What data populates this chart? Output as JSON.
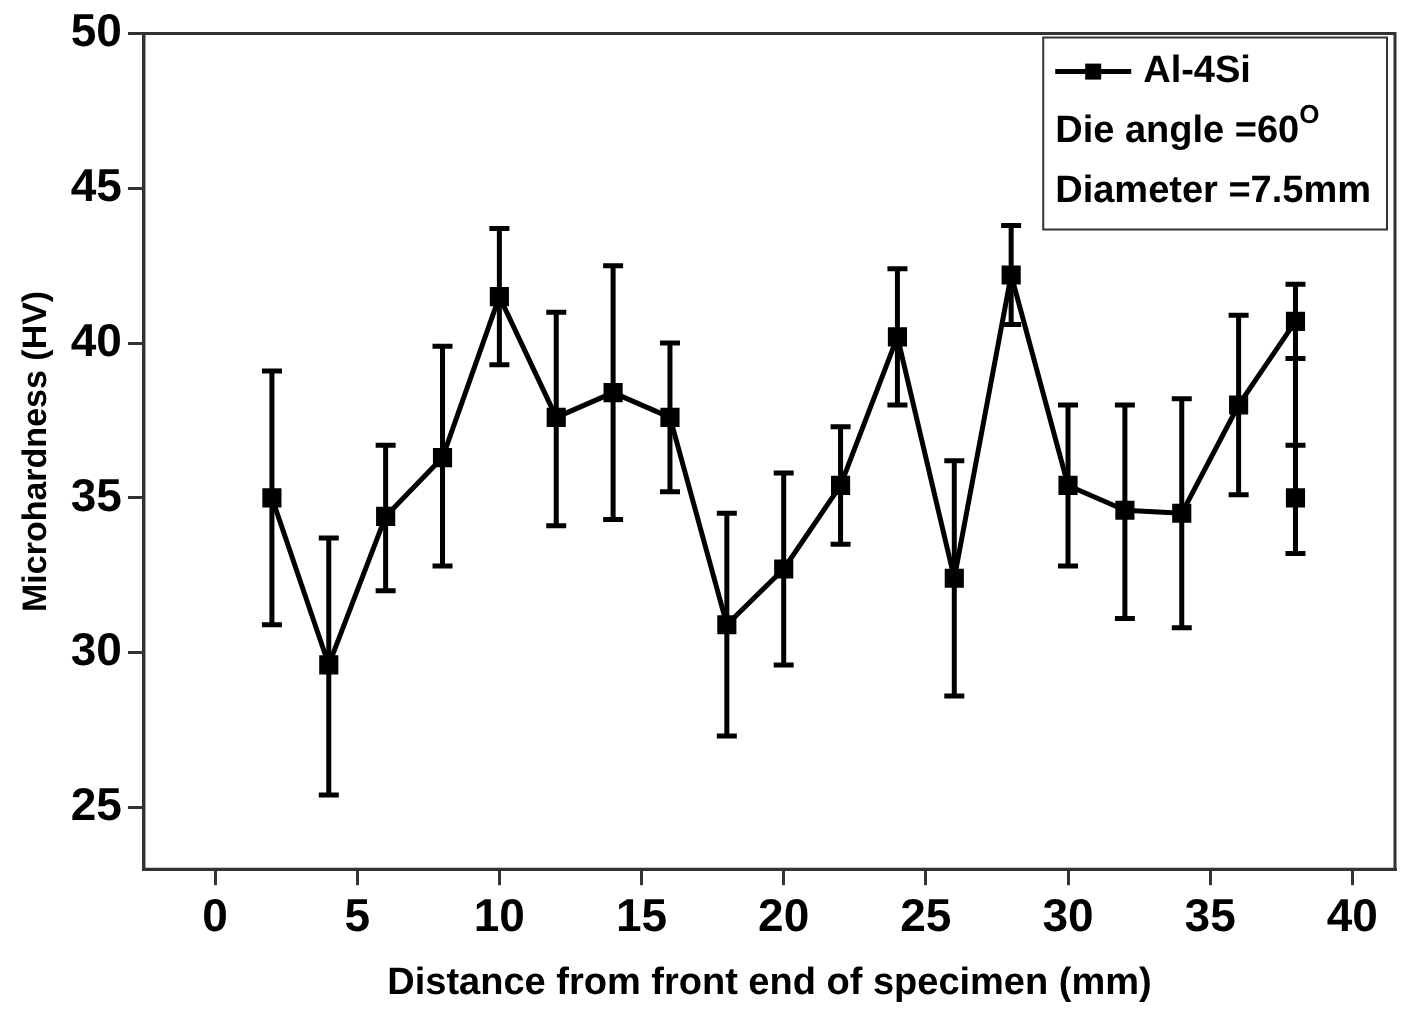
{
  "chart_data": {
    "type": "line",
    "xlabel": "Distance from front end of specimen (mm)",
    "ylabel": "Microhardness (HV)",
    "xlim": [
      -2.5,
      41.5
    ],
    "xticks": [
      0,
      5,
      10,
      15,
      20,
      25,
      30,
      35,
      40
    ],
    "ylim": [
      23,
      50
    ],
    "yticks": [
      25,
      30,
      35,
      40,
      45,
      50
    ],
    "grid": false,
    "legend": "top right",
    "marker": "square",
    "line_style": "solid",
    "annotations": [
      "Die angle =60$^{O}$",
      "Diameter =7.5mm"
    ],
    "series": [
      {
        "name": "Al-4Si",
        "color": "#000000",
        "x": [
          2,
          4,
          6,
          8,
          10,
          12,
          14,
          16,
          18,
          20,
          22,
          24,
          26,
          28,
          30,
          32,
          34,
          36,
          38
        ],
        "values": [
          35.0,
          29.6,
          34.4,
          36.3,
          41.5,
          37.6,
          38.4,
          37.6,
          30.9,
          32.7,
          35.4,
          40.2,
          32.4,
          42.2,
          35.4,
          34.6,
          34.5,
          38.0,
          40.7
        ],
        "errors": [
          [
            30.9,
            39.1
          ],
          [
            25.4,
            33.7
          ],
          [
            32.0,
            36.7
          ],
          [
            32.8,
            39.9
          ],
          [
            39.3,
            43.7
          ],
          [
            34.1,
            41.0
          ],
          [
            34.3,
            42.5
          ],
          [
            35.2,
            40.0
          ],
          [
            27.3,
            34.5
          ],
          [
            29.6,
            35.8
          ],
          [
            33.5,
            37.3
          ],
          [
            38.0,
            42.4
          ],
          [
            28.6,
            36.2
          ],
          [
            40.6,
            43.8
          ],
          [
            32.8,
            38.0
          ],
          [
            31.1,
            38.0
          ],
          [
            30.8,
            38.2
          ],
          [
            35.1,
            40.9
          ],
          [
            36.7,
            41.9
          ]
        ]
      },
      {
        "color": "#000000",
        "x": [
          38
        ],
        "values": [
          35.0
        ],
        "errors": [
          [
            33.2,
            39.5
          ]
        ]
      }
    ]
  }
}
